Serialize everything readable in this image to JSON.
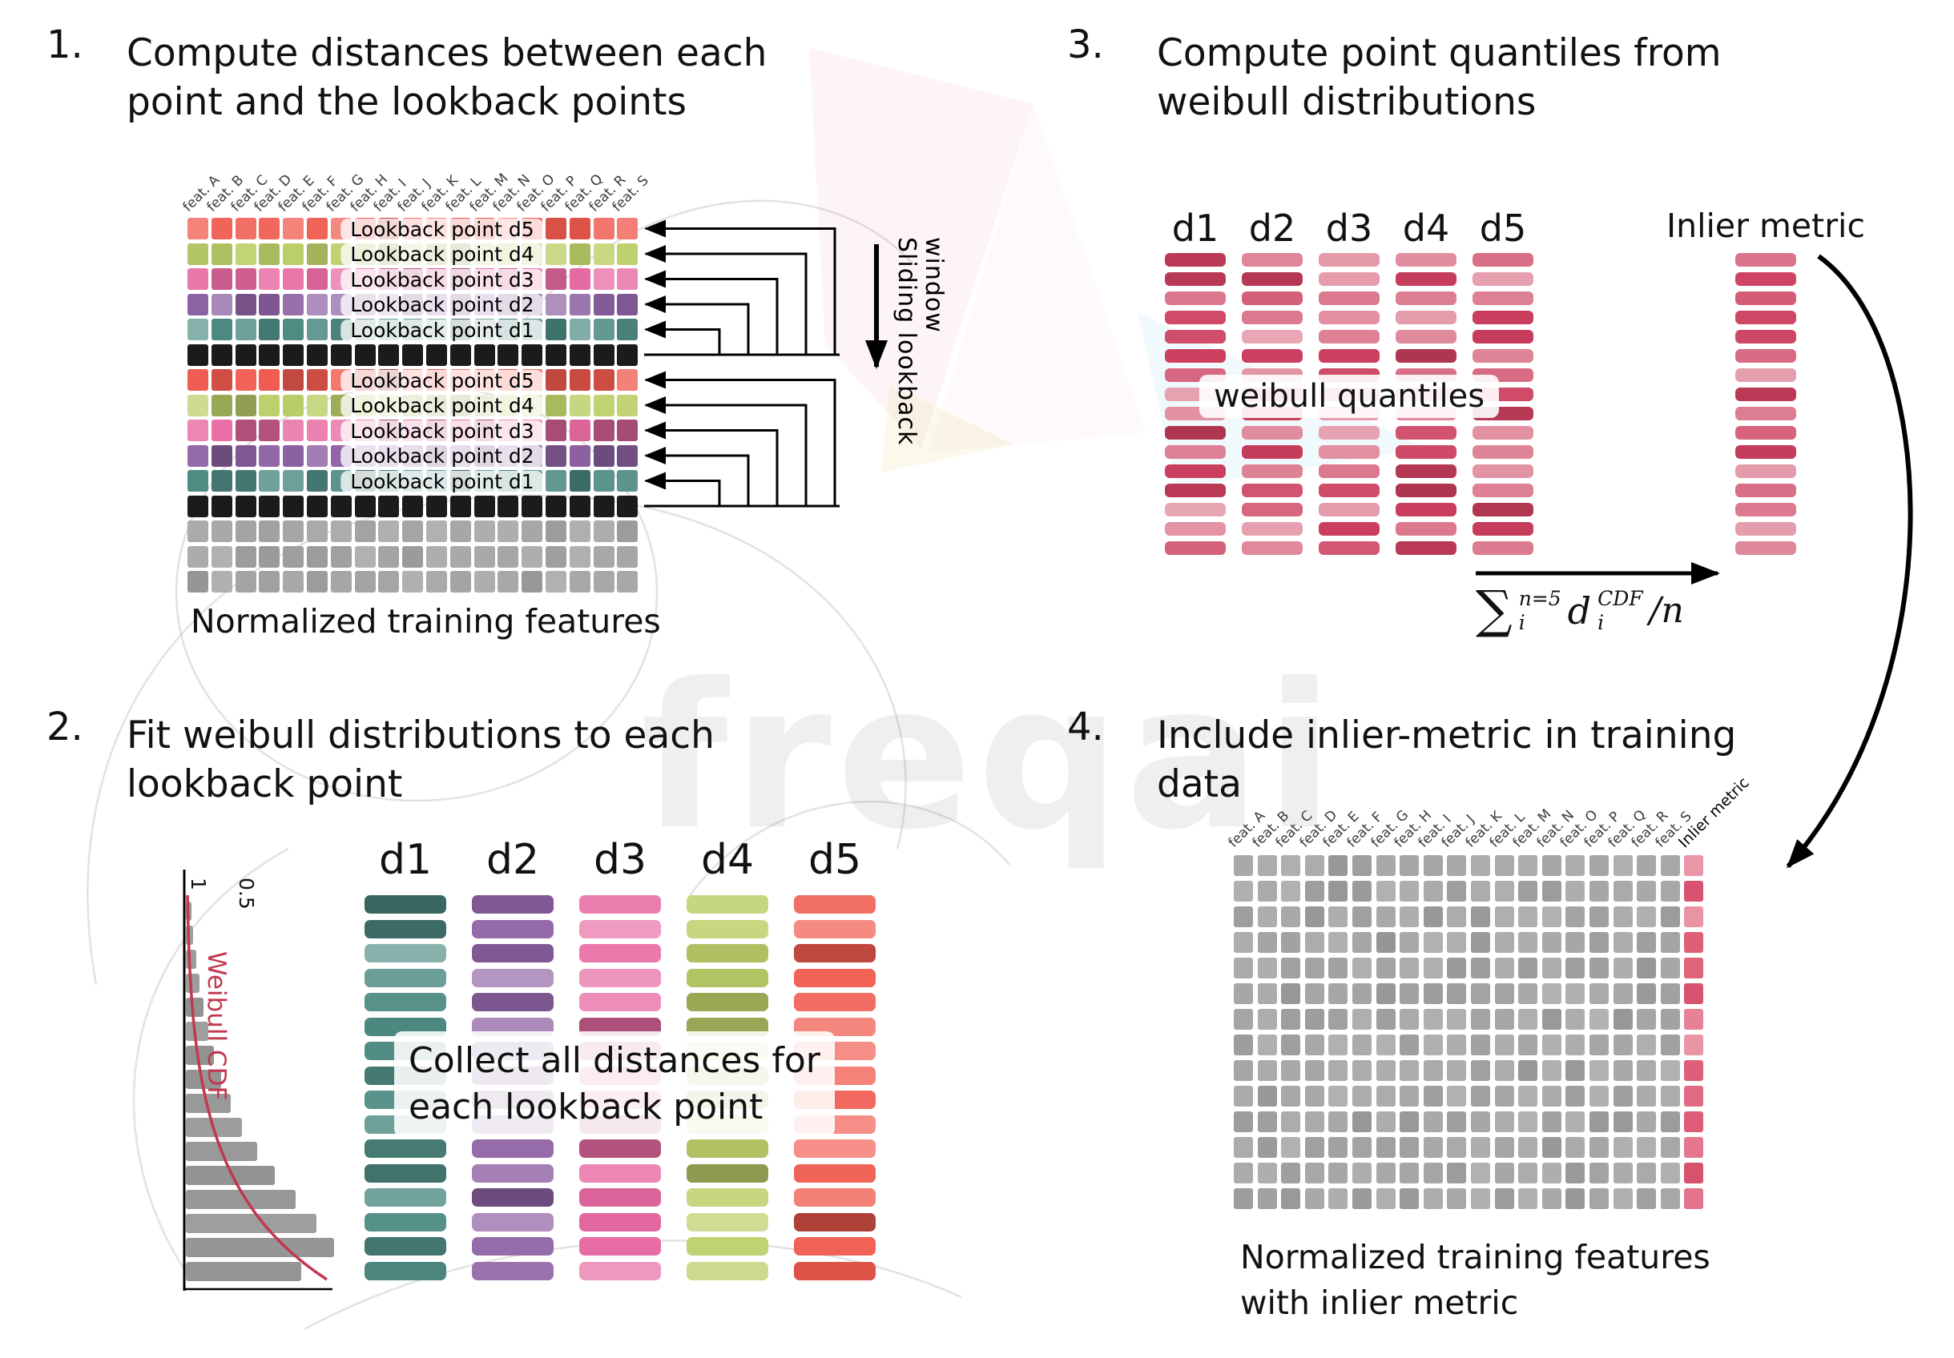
{
  "colors": {
    "d1": "#4f8c84",
    "d2": "#8e62a4",
    "d3": "#e76aa2",
    "d4": "#bcd06a",
    "d5": "#f05a4e",
    "black": "#1b1b1b",
    "gray": "#a7a7a7",
    "quantile_red": "#cc3f5e",
    "inlier_red": "#dd5571",
    "cdf_red": "#c13850"
  },
  "watermark": {
    "text": "freqai"
  },
  "panel1": {
    "number": "1.",
    "title_lines": [
      "Compute distances between each",
      "point and the lookback points"
    ],
    "features": [
      "feat. A",
      "feat. B",
      "feat. C",
      "feat. D",
      "feat. E",
      "feat. F",
      "feat. G",
      "feat. H",
      "feat. I",
      "feat. J",
      "feat. K",
      "feat. L",
      "feat. M",
      "feat. N",
      "feat. O",
      "feat. P",
      "feat. Q",
      "feat. R",
      "feat. S"
    ],
    "rows": [
      {
        "type": "d5",
        "label": "Lookback point d5"
      },
      {
        "type": "d4",
        "label": "Lookback point d4"
      },
      {
        "type": "d3",
        "label": "Lookback point d3"
      },
      {
        "type": "d2",
        "label": "Lookback point d2"
      },
      {
        "type": "d1",
        "label": "Lookback point d1"
      },
      {
        "type": "black"
      },
      {
        "type": "d5",
        "label": "Lookback point d5"
      },
      {
        "type": "d4",
        "label": "Lookback point d4"
      },
      {
        "type": "d3",
        "label": "Lookback point d3"
      },
      {
        "type": "d2",
        "label": "Lookback point d2"
      },
      {
        "type": "d1",
        "label": "Lookback point d1"
      },
      {
        "type": "black"
      },
      {
        "type": "gray"
      },
      {
        "type": "gray"
      },
      {
        "type": "gray"
      }
    ],
    "caption": "Normalized training features",
    "sliding_lines": [
      "Sliding lookback",
      "window"
    ]
  },
  "panel2": {
    "number": "2.",
    "title_lines": [
      "Fit weibull distributions to each",
      "lookback point"
    ],
    "columns": [
      {
        "label": "d1",
        "color_key": "d1"
      },
      {
        "label": "d2",
        "color_key": "d2"
      },
      {
        "label": "d3",
        "color_key": "d3"
      },
      {
        "label": "d4",
        "color_key": "d4"
      },
      {
        "label": "d5",
        "color_key": "d5"
      }
    ],
    "bars_per_column": 16,
    "overlay_lines": [
      "Collect all distances for",
      "each lookback point"
    ],
    "histogram": {
      "cdf_label": "Weibull CDF",
      "ticks": [
        "1",
        "0.5"
      ],
      "values": [
        0.04,
        0.05,
        0.07,
        0.09,
        0.12,
        0.15,
        0.19,
        0.24,
        0.3,
        0.38,
        0.48,
        0.6,
        0.74,
        0.88,
        1.0,
        0.78
      ]
    }
  },
  "panel3": {
    "number": "3.",
    "title_lines": [
      "Compute point quantiles from",
      "weibull distributions"
    ],
    "column_labels": [
      "d1",
      "d2",
      "d3",
      "d4",
      "d5"
    ],
    "bars_per_column": 16,
    "overlay": "weibull quantiles",
    "inlier_label": "Inlier metric",
    "formula": {
      "sum": "∑",
      "sum_sup": "n=5",
      "sum_sub": "i",
      "var": "d",
      "var_sup": "CDF",
      "var_sub": "i",
      "rest": "/n"
    }
  },
  "panel4": {
    "number": "4.",
    "title_lines": [
      "Include inlier-metric in training",
      "data"
    ],
    "features": [
      "feat. A",
      "feat. B",
      "feat. C",
      "feat. D",
      "feat. E",
      "feat. F",
      "feat. G",
      "feat. H",
      "feat. I",
      "feat. J",
      "feat. K",
      "feat. L",
      "feat. M",
      "feat. N",
      "feat. O",
      "feat. P",
      "feat. Q",
      "feat. R",
      "feat. S"
    ],
    "inlier_column_label": "Inlier metric",
    "grid_rows": 14,
    "caption_lines": [
      "Normalized training features",
      "with inlier metric"
    ]
  }
}
